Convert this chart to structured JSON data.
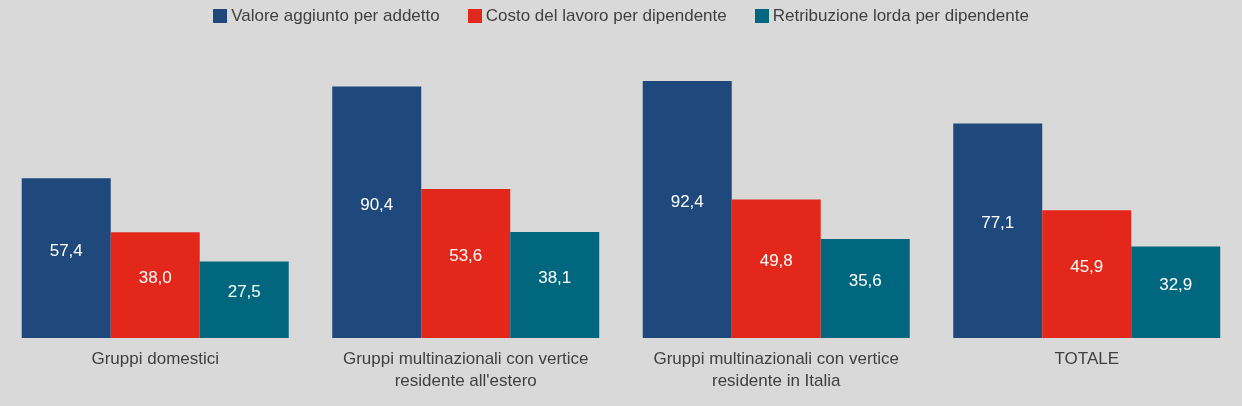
{
  "chart_data": {
    "type": "bar",
    "categories": [
      "Gruppi domestici",
      "Gruppi multinazionali con vertice residente all'estero",
      "Gruppi multinazionali con vertice residente in Italia",
      "TOTALE"
    ],
    "series": [
      {
        "name": "Valore aggiunto per addetto",
        "color": "#1f497d",
        "values": [
          57.4,
          90.4,
          92.4,
          77.1
        ],
        "value_labels": [
          "57,4",
          "90,4",
          "92,4",
          "77,1"
        ]
      },
      {
        "name": "Costo del lavoro per dipendente",
        "color": "#e3281b",
        "values": [
          38.0,
          53.6,
          49.8,
          45.9
        ],
        "value_labels": [
          "38,0",
          "53,6",
          "49,8",
          "45,9"
        ]
      },
      {
        "name": "Retribuzione lorda per dipendente",
        "color": "#00677f",
        "values": [
          27.5,
          38.1,
          35.6,
          32.9
        ],
        "value_labels": [
          "27,5",
          "38,1",
          "35,6",
          "32,9"
        ]
      }
    ],
    "legend": "top"
  }
}
